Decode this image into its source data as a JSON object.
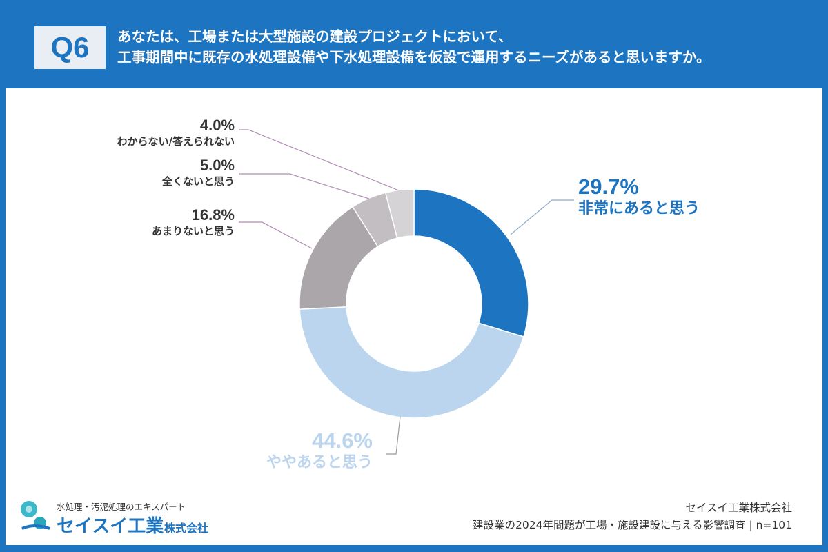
{
  "header": {
    "badge": "Q6",
    "question_line1": "あなたは、工場または大型施設の建設プロジェクトにおいて、",
    "question_line2": "工事期間中に既存の水処理設備や下水処理設備を仮設で運用するニーズがあると思いますか。"
  },
  "chart_data": {
    "type": "donut",
    "unit": "%",
    "slices": [
      {
        "label": "非常にあると思う",
        "value": 29.7,
        "display": "29.7%",
        "color": "#1d75c2",
        "label_color": "#1d75c2"
      },
      {
        "label": "ややあると思う",
        "value": 44.6,
        "display": "44.6%",
        "color": "#bcd5ee",
        "label_color": "#bcd5ee"
      },
      {
        "label": "あまりないと思う",
        "value": 16.8,
        "display": "16.8%",
        "color": "#aaa6aa",
        "label_color": "#333333"
      },
      {
        "label": "全くないと思う",
        "value": 5.0,
        "display": "5.0%",
        "color": "#c2bec2",
        "label_color": "#333333"
      },
      {
        "label": "わからない/答えられない",
        "value": 4.0,
        "display": "4.0%",
        "color": "#d6d3d6",
        "label_color": "#333333"
      }
    ]
  },
  "footer": {
    "logo_tagline": "水処理・汚泥処理のエキスパート",
    "logo_name": "セイスイ工業",
    "logo_suffix": "株式会社",
    "company": "セイスイ工業株式会社",
    "survey": "建設業の2024年問題が工場・施設建設に与える影響調査 | n=101"
  },
  "colors": {
    "brand_blue": "#1d75c2",
    "background": "#ffffff"
  }
}
